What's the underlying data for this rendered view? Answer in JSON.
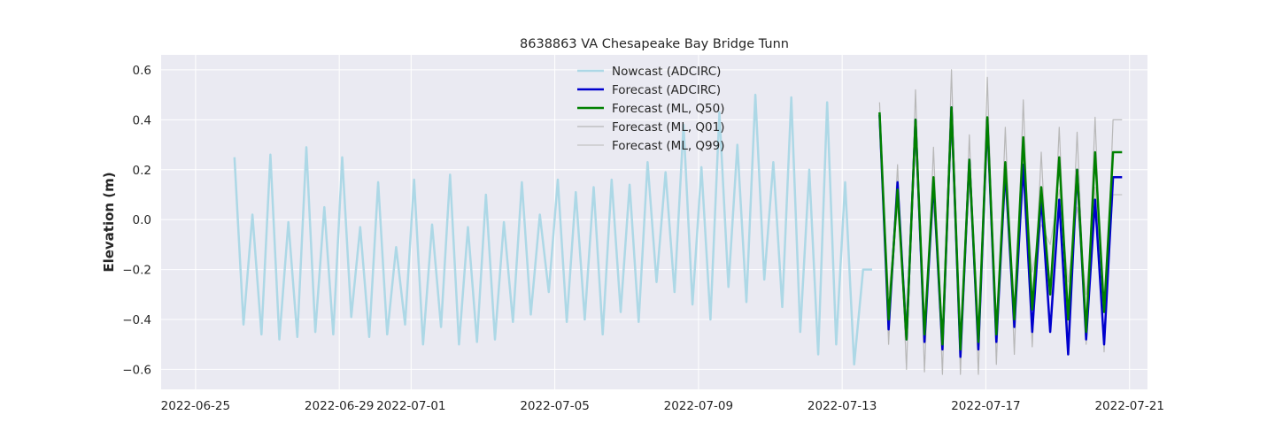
{
  "chart_data": {
    "type": "line",
    "title": "8638863 VA Chesapeake Bay Bridge Tunn",
    "xlabel": "",
    "ylabel": "Elevation (m)",
    "x_is_date": true,
    "xlim": [
      "2022-06-24T01:00",
      "2022-07-21T12:00"
    ],
    "ylim": [
      -0.68,
      0.66
    ],
    "x_ticks": [
      "2022-06-25",
      "2022-06-29",
      "2022-07-01",
      "2022-07-05",
      "2022-07-09",
      "2022-07-13",
      "2022-07-17",
      "2022-07-21"
    ],
    "y_ticks": [
      -0.6,
      -0.4,
      -0.2,
      0.0,
      0.2,
      0.4,
      0.6
    ],
    "y_tick_labels": [
      "−0.6",
      "−0.4",
      "−0.2",
      "0.0",
      "0.2",
      "0.4",
      "0.6"
    ],
    "grid": true,
    "legend_position": "upper-center",
    "background": "#eaeaf2",
    "series": [
      {
        "name": "Nowcast (ADCIRC)",
        "color": "#add8e6",
        "width": 2.5,
        "x": [
          "2022-06-26T02:00",
          "2022-06-26T08:00",
          "2022-06-26T14:00",
          "2022-06-26T20:00",
          "2022-06-27T02:00",
          "2022-06-27T08:00",
          "2022-06-27T14:00",
          "2022-06-27T20:00",
          "2022-06-28T02:00",
          "2022-06-28T08:00",
          "2022-06-28T14:00",
          "2022-06-28T20:00",
          "2022-06-29T02:00",
          "2022-06-29T08:00",
          "2022-06-29T14:00",
          "2022-06-29T20:00",
          "2022-06-30T02:00",
          "2022-06-30T08:00",
          "2022-06-30T14:00",
          "2022-06-30T20:00",
          "2022-07-01T02:00",
          "2022-07-01T08:00",
          "2022-07-01T14:00",
          "2022-07-01T20:00",
          "2022-07-02T02:00",
          "2022-07-02T08:00",
          "2022-07-02T14:00",
          "2022-07-02T20:00",
          "2022-07-03T02:00",
          "2022-07-03T08:00",
          "2022-07-03T14:00",
          "2022-07-03T20:00",
          "2022-07-04T02:00",
          "2022-07-04T08:00",
          "2022-07-04T14:00",
          "2022-07-04T20:00",
          "2022-07-05T02:00",
          "2022-07-05T08:00",
          "2022-07-05T14:00",
          "2022-07-05T20:00",
          "2022-07-06T02:00",
          "2022-07-06T08:00",
          "2022-07-06T14:00",
          "2022-07-06T20:00",
          "2022-07-07T02:00",
          "2022-07-07T08:00",
          "2022-07-07T14:00",
          "2022-07-07T20:00",
          "2022-07-08T02:00",
          "2022-07-08T08:00",
          "2022-07-08T14:00",
          "2022-07-08T20:00",
          "2022-07-09T02:00",
          "2022-07-09T08:00",
          "2022-07-09T14:00",
          "2022-07-09T20:00",
          "2022-07-10T02:00",
          "2022-07-10T08:00",
          "2022-07-10T14:00",
          "2022-07-10T20:00",
          "2022-07-11T02:00",
          "2022-07-11T08:00",
          "2022-07-11T14:00",
          "2022-07-11T20:00",
          "2022-07-12T02:00",
          "2022-07-12T08:00",
          "2022-07-12T14:00",
          "2022-07-12T20:00",
          "2022-07-13T02:00",
          "2022-07-13T08:00",
          "2022-07-13T14:00",
          "2022-07-13T20:00"
        ],
        "y": [
          0.25,
          -0.42,
          0.02,
          -0.46,
          0.26,
          -0.48,
          -0.01,
          -0.47,
          0.29,
          -0.45,
          0.05,
          -0.46,
          0.25,
          -0.39,
          -0.03,
          -0.47,
          0.15,
          -0.46,
          -0.11,
          -0.42,
          0.16,
          -0.5,
          -0.02,
          -0.43,
          0.18,
          -0.5,
          -0.03,
          -0.49,
          0.1,
          -0.48,
          -0.01,
          -0.41,
          0.15,
          -0.38,
          0.02,
          -0.29,
          0.16,
          -0.41,
          0.11,
          -0.4,
          0.13,
          -0.46,
          0.16,
          -0.37,
          0.14,
          -0.41,
          0.23,
          -0.25,
          0.19,
          -0.29,
          0.38,
          -0.34,
          0.21,
          -0.4,
          0.43,
          -0.27,
          0.3,
          -0.33,
          0.5,
          -0.24,
          0.23,
          -0.35,
          0.49,
          -0.45,
          0.2,
          -0.54,
          0.47,
          -0.5,
          0.15,
          -0.58,
          -0.2,
          -0.2
        ]
      },
      {
        "name": "Forecast (ADCIRC)",
        "color": "#0000cd",
        "width": 2.5,
        "x": [
          "2022-07-14T01:00",
          "2022-07-14T07:00",
          "2022-07-14T13:00",
          "2022-07-14T19:00",
          "2022-07-15T01:00",
          "2022-07-15T07:00",
          "2022-07-15T13:00",
          "2022-07-15T19:00",
          "2022-07-16T01:00",
          "2022-07-16T07:00",
          "2022-07-16T13:00",
          "2022-07-16T19:00",
          "2022-07-17T01:00",
          "2022-07-17T07:00",
          "2022-07-17T13:00",
          "2022-07-17T19:00",
          "2022-07-18T01:00",
          "2022-07-18T07:00",
          "2022-07-18T13:00",
          "2022-07-18T19:00",
          "2022-07-19T01:00",
          "2022-07-19T07:00",
          "2022-07-19T13:00",
          "2022-07-19T19:00",
          "2022-07-20T01:00",
          "2022-07-20T07:00",
          "2022-07-20T13:00",
          "2022-07-20T19:00"
        ],
        "y": [
          0.42,
          -0.44,
          0.15,
          -0.48,
          0.4,
          -0.49,
          0.15,
          -0.52,
          0.45,
          -0.55,
          0.24,
          -0.52,
          0.4,
          -0.49,
          0.2,
          -0.43,
          0.22,
          -0.45,
          0.09,
          -0.45,
          0.08,
          -0.54,
          0.2,
          -0.48,
          0.08,
          -0.5,
          0.17,
          0.17
        ]
      },
      {
        "name": "Forecast (ML, Q50)",
        "color": "#008000",
        "width": 2.5,
        "x": [
          "2022-07-14T01:00",
          "2022-07-14T07:00",
          "2022-07-14T13:00",
          "2022-07-14T19:00",
          "2022-07-15T01:00",
          "2022-07-15T07:00",
          "2022-07-15T13:00",
          "2022-07-15T19:00",
          "2022-07-16T01:00",
          "2022-07-16T07:00",
          "2022-07-16T13:00",
          "2022-07-16T19:00",
          "2022-07-17T01:00",
          "2022-07-17T07:00",
          "2022-07-17T13:00",
          "2022-07-17T19:00",
          "2022-07-18T01:00",
          "2022-07-18T07:00",
          "2022-07-18T13:00",
          "2022-07-18T19:00",
          "2022-07-19T01:00",
          "2022-07-19T07:00",
          "2022-07-19T13:00",
          "2022-07-19T19:00",
          "2022-07-20T01:00",
          "2022-07-20T07:00",
          "2022-07-20T13:00",
          "2022-07-20T19:00"
        ],
        "y": [
          0.43,
          -0.4,
          0.12,
          -0.48,
          0.4,
          -0.46,
          0.17,
          -0.5,
          0.45,
          -0.52,
          0.24,
          -0.49,
          0.41,
          -0.46,
          0.23,
          -0.4,
          0.33,
          -0.36,
          0.13,
          -0.3,
          0.25,
          -0.4,
          0.2,
          -0.45,
          0.27,
          -0.37,
          0.27,
          0.27
        ]
      },
      {
        "name": "Forecast (ML, Q01)",
        "color": "#b8b8b8",
        "width": 1.2,
        "x": [
          "2022-07-14T01:00",
          "2022-07-14T07:00",
          "2022-07-14T13:00",
          "2022-07-14T19:00",
          "2022-07-15T01:00",
          "2022-07-15T07:00",
          "2022-07-15T13:00",
          "2022-07-15T19:00",
          "2022-07-16T01:00",
          "2022-07-16T07:00",
          "2022-07-16T13:00",
          "2022-07-16T19:00",
          "2022-07-17T01:00",
          "2022-07-17T07:00",
          "2022-07-17T13:00",
          "2022-07-17T19:00",
          "2022-07-18T01:00",
          "2022-07-18T07:00",
          "2022-07-18T13:00",
          "2022-07-18T19:00",
          "2022-07-19T01:00",
          "2022-07-19T07:00",
          "2022-07-19T13:00",
          "2022-07-19T19:00",
          "2022-07-20T01:00",
          "2022-07-20T07:00",
          "2022-07-20T13:00",
          "2022-07-20T19:00"
        ],
        "y": [
          0.47,
          -0.5,
          0.22,
          -0.6,
          0.52,
          -0.61,
          0.29,
          -0.62,
          0.6,
          -0.62,
          0.34,
          -0.62,
          0.57,
          -0.58,
          0.37,
          -0.54,
          0.48,
          -0.51,
          0.27,
          -0.45,
          0.37,
          -0.48,
          0.35,
          -0.5,
          0.41,
          -0.53,
          0.4,
          0.4
        ]
      },
      {
        "name": "Forecast (ML, Q99)",
        "color": "#c4c4c4",
        "width": 1.2,
        "x": [
          "2022-07-14T01:00",
          "2022-07-14T07:00",
          "2022-07-14T13:00",
          "2022-07-14T19:00",
          "2022-07-15T01:00",
          "2022-07-15T07:00",
          "2022-07-15T13:00",
          "2022-07-15T19:00",
          "2022-07-16T01:00",
          "2022-07-16T07:00",
          "2022-07-16T13:00",
          "2022-07-16T19:00",
          "2022-07-17T01:00",
          "2022-07-17T07:00",
          "2022-07-17T13:00",
          "2022-07-17T19:00",
          "2022-07-18T01:00",
          "2022-07-18T07:00",
          "2022-07-18T13:00",
          "2022-07-18T19:00",
          "2022-07-19T01:00",
          "2022-07-19T07:00",
          "2022-07-19T13:00",
          "2022-07-19T19:00",
          "2022-07-20T01:00",
          "2022-07-20T07:00",
          "2022-07-20T13:00",
          "2022-07-20T19:00"
        ],
        "y": [
          0.38,
          -0.3,
          0.05,
          -0.38,
          0.3,
          -0.4,
          0.06,
          -0.44,
          0.36,
          -0.46,
          0.15,
          -0.44,
          0.32,
          -0.4,
          0.13,
          -0.36,
          0.25,
          -0.21,
          -0.02,
          -0.1,
          0.12,
          -0.25,
          0.05,
          -0.3,
          0.13,
          -0.35,
          0.1,
          0.1
        ]
      }
    ]
  }
}
